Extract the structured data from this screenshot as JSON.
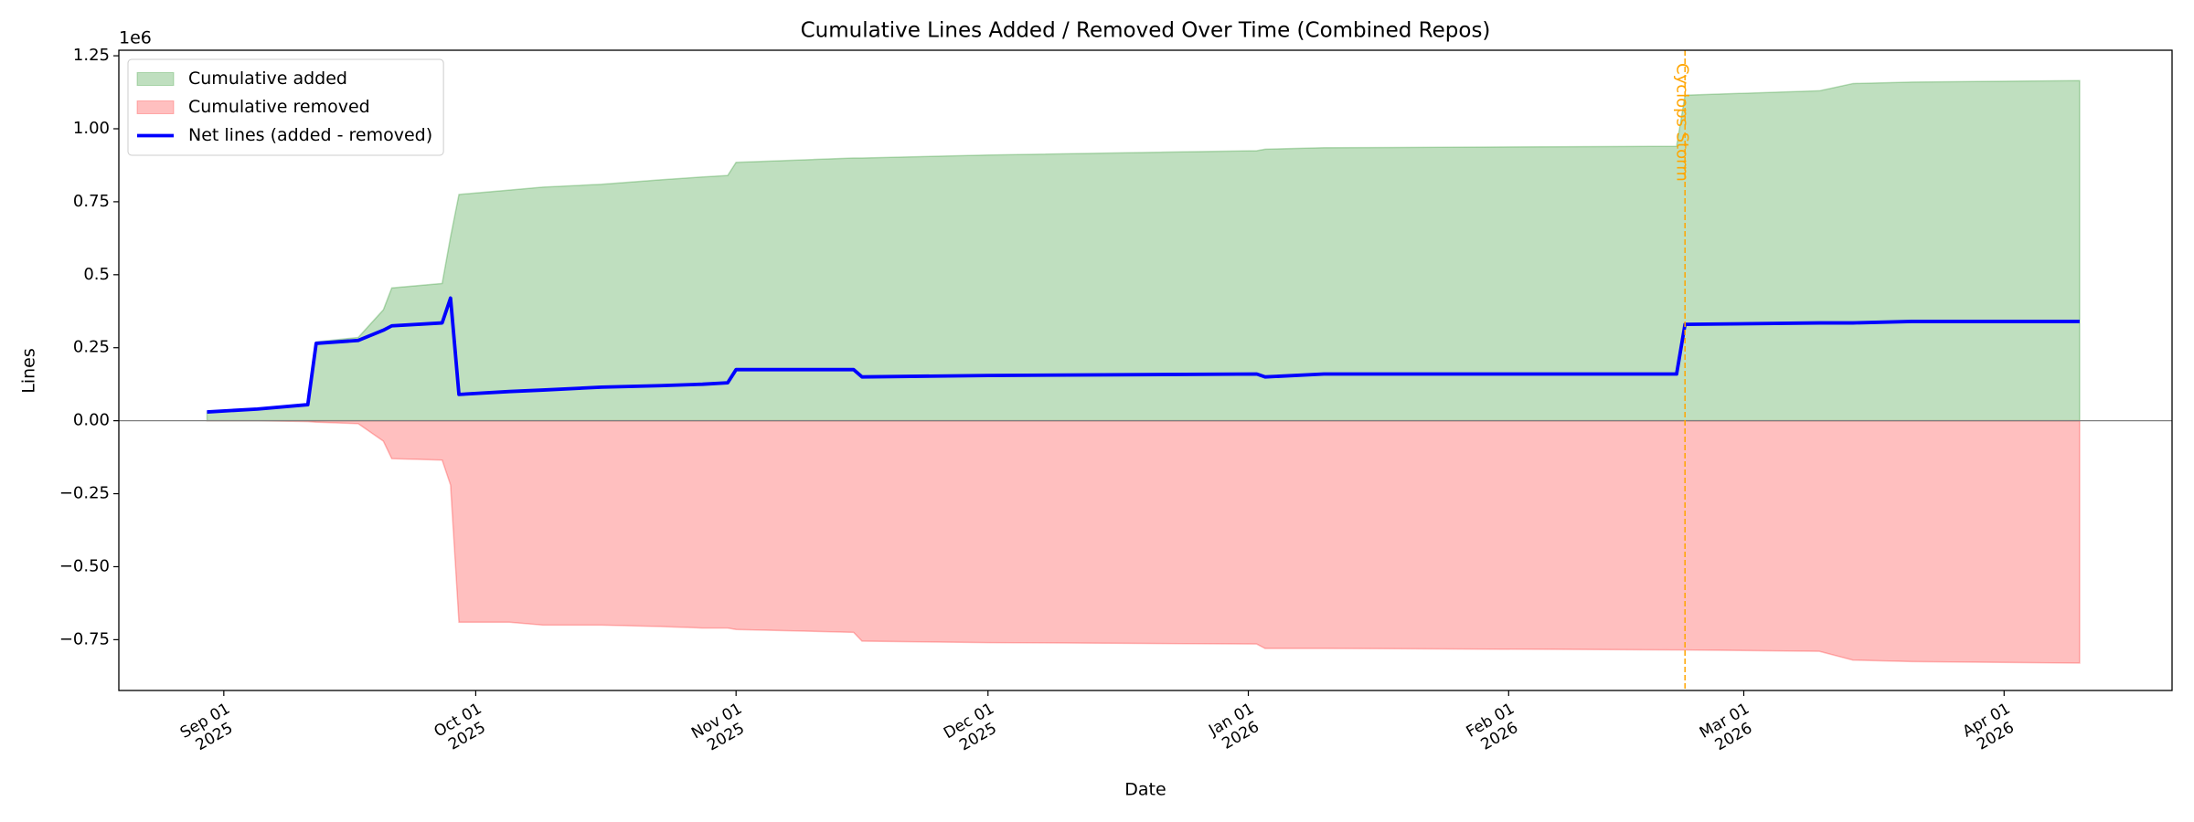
{
  "chart_data": {
    "type": "line",
    "title": "Cumulative Lines Added / Removed Over Time (Combined Repos)",
    "x_label": "Date",
    "y_label": "Lines",
    "y_offset_label": "1e6",
    "x": [
      "2025-08-30",
      "2025-09-05",
      "2025-09-11",
      "2025-09-12",
      "2025-09-17",
      "2025-09-20",
      "2025-09-21",
      "2025-09-27",
      "2025-09-28",
      "2025-09-29",
      "2025-10-05",
      "2025-10-09",
      "2025-10-16",
      "2025-10-23",
      "2025-10-28",
      "2025-10-31",
      "2025-11-01",
      "2025-11-15",
      "2025-11-16",
      "2025-12-01",
      "2026-01-02",
      "2026-01-03",
      "2026-01-10",
      "2026-02-21",
      "2026-02-22",
      "2026-03-10",
      "2026-03-14",
      "2026-03-21",
      "2026-04-10"
    ],
    "series": [
      {
        "name": "Cumulative added",
        "style": "area",
        "color": "#008000",
        "values": [
          0.03,
          0.04,
          0.055,
          0.27,
          0.285,
          0.38,
          0.455,
          0.47,
          0.63,
          0.775,
          0.79,
          0.8,
          0.81,
          0.825,
          0.835,
          0.84,
          0.885,
          0.9,
          0.9,
          0.91,
          0.925,
          0.93,
          0.935,
          0.94,
          1.115,
          1.13,
          1.155,
          1.16,
          1.165
        ]
      },
      {
        "name": "Cumulative removed",
        "style": "area",
        "color": "#ff0000",
        "values": [
          0,
          0,
          -0.003,
          -0.005,
          -0.01,
          -0.07,
          -0.13,
          -0.135,
          -0.22,
          -0.69,
          -0.69,
          -0.7,
          -0.7,
          -0.705,
          -0.71,
          -0.71,
          -0.715,
          -0.725,
          -0.755,
          -0.76,
          -0.765,
          -0.78,
          -0.78,
          -0.785,
          -0.785,
          -0.79,
          -0.82,
          -0.825,
          -0.83
        ]
      },
      {
        "name": "Net lines (added - removed)",
        "style": "line",
        "color": "#0000ff",
        "values": [
          0.03,
          0.04,
          0.055,
          0.265,
          0.275,
          0.31,
          0.325,
          0.335,
          0.42,
          0.09,
          0.1,
          0.105,
          0.115,
          0.12,
          0.125,
          0.13,
          0.175,
          0.175,
          0.15,
          0.155,
          0.16,
          0.15,
          0.16,
          0.16,
          0.33,
          0.335,
          0.335,
          0.34,
          0.34
        ]
      }
    ],
    "xlim": [
      "2025-08-19T12:00:00Z",
      "2026-04-21T00:00:00Z"
    ],
    "xticks": [
      {
        "value": "2025-09-01",
        "label": "Sep 01\n2025"
      },
      {
        "value": "2025-10-01",
        "label": "Oct 01\n2025"
      },
      {
        "value": "2025-11-01",
        "label": "Nov 01\n2025"
      },
      {
        "value": "2025-12-01",
        "label": "Dec 01\n2025"
      },
      {
        "value": "2026-01-01",
        "label": "Jan 01\n2026"
      },
      {
        "value": "2026-02-01",
        "label": "Feb 01\n2026"
      },
      {
        "value": "2026-03-01",
        "label": "Mar 01\n2026"
      },
      {
        "value": "2026-04-01",
        "label": "Apr 01\n2026"
      }
    ],
    "ylim": [
      -0.924,
      1.269
    ],
    "yticks": [
      {
        "value": -0.75,
        "label": "−0.75"
      },
      {
        "value": -0.5,
        "label": "−0.50"
      },
      {
        "value": -0.25,
        "label": "−0.25"
      },
      {
        "value": 0,
        "label": "0.00"
      },
      0.25,
      0.5,
      0.75,
      {
        "value": 1,
        "label": "1.00"
      },
      1.25
    ],
    "hlines": [
      0
    ],
    "annotations": [
      {
        "x": "2026-02-22",
        "text": "Cyclops Storm",
        "color": "#ffa500"
      }
    ],
    "legend": "upper left",
    "grid": false
  }
}
